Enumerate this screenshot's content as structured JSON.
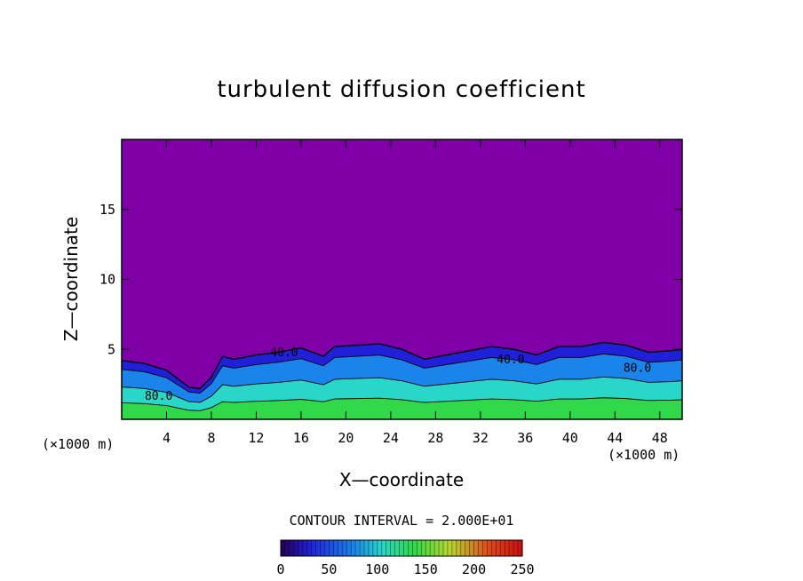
{
  "chart_data": {
    "type": "heatmap",
    "title": "turbulent diffusion coefficient",
    "xlabel": "X—coordinate",
    "ylabel": "Z—coordinate",
    "x_unit_label": "(×1000 m)",
    "xlim": [
      0,
      50
    ],
    "ylim": [
      0,
      20
    ],
    "x_ticks": [
      4,
      8,
      12,
      16,
      20,
      24,
      28,
      32,
      36,
      40,
      44,
      48
    ],
    "y_ticks": [
      5,
      10,
      15
    ],
    "contour_interval_text": "CONTOUR INTERVAL = 2.000E+01",
    "contour_labels": [
      {
        "text": "80.0",
        "x": 3.3,
        "z": 1.4
      },
      {
        "text": "40.0",
        "x": 14.5,
        "z": 4.5
      },
      {
        "text": "40.0",
        "x": 34.7,
        "z": 4.0
      },
      {
        "text": "80.0",
        "x": 46.0,
        "z": 3.4
      }
    ],
    "colorbar": {
      "min": 0,
      "max": 250,
      "ticks": [
        0,
        50,
        100,
        150,
        200,
        250
      ]
    },
    "turbulent_layer_top_profile": [
      [
        0,
        4.2
      ],
      [
        2,
        4.0
      ],
      [
        4,
        3.5
      ],
      [
        6,
        2.3
      ],
      [
        7,
        2.2
      ],
      [
        8,
        3.0
      ],
      [
        9,
        4.5
      ],
      [
        10,
        4.3
      ],
      [
        12,
        4.6
      ],
      [
        14,
        4.8
      ],
      [
        16,
        5.1
      ],
      [
        18,
        4.5
      ],
      [
        19,
        5.2
      ],
      [
        21,
        5.3
      ],
      [
        23,
        5.4
      ],
      [
        25,
        5.0
      ],
      [
        27,
        4.3
      ],
      [
        29,
        4.6
      ],
      [
        31,
        4.9
      ],
      [
        33,
        5.2
      ],
      [
        35,
        5.0
      ],
      [
        37,
        4.6
      ],
      [
        39,
        5.2
      ],
      [
        41,
        5.2
      ],
      [
        43,
        5.5
      ],
      [
        45,
        5.3
      ],
      [
        47,
        4.8
      ],
      [
        49,
        4.9
      ],
      [
        50,
        5.0
      ]
    ],
    "background_color": "#7e00a6",
    "colormap": [
      "#23004f",
      "#2020d8",
      "#1a84ea",
      "#2ad6c8",
      "#30d84a",
      "#b8d830",
      "#e04a1a",
      "#c81010"
    ]
  }
}
